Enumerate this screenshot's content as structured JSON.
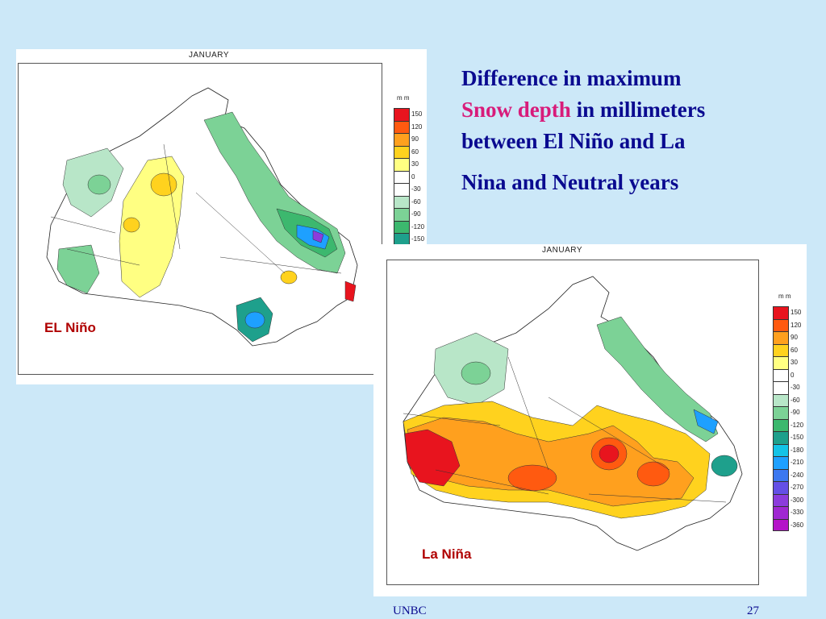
{
  "slide": {
    "title_line1": "Difference in maximum",
    "title_highlight": "Snow depth",
    "title_line2_rest": " in millimeters",
    "title_line3": "between El Niño and La",
    "title_line4": "Nina and Neutral years"
  },
  "footer": {
    "left": "UNBC",
    "page_number": "27"
  },
  "maps": [
    {
      "title": "JANUARY",
      "caption": "EL Niño"
    },
    {
      "title": "JANUARY",
      "caption": "La Niña"
    }
  ],
  "legend": {
    "unit": "m m",
    "levels": [
      {
        "label": "150",
        "color": "#e8141e"
      },
      {
        "label": "120",
        "color": "#ff5a10"
      },
      {
        "label": "90",
        "color": "#ffa01e"
      },
      {
        "label": "60",
        "color": "#ffd21e"
      },
      {
        "label": "30",
        "color": "#ffff82"
      },
      {
        "label": "0",
        "color": "#ffffff"
      },
      {
        "label": "-30",
        "color": "#ffffff"
      },
      {
        "label": "-60",
        "color": "#b8e6c8"
      },
      {
        "label": "-90",
        "color": "#7cd296"
      },
      {
        "label": "-120",
        "color": "#3cb86e"
      },
      {
        "label": "-150",
        "color": "#1ea08c"
      },
      {
        "label": "-180",
        "color": "#14c3e6"
      },
      {
        "label": "-210",
        "color": "#1ea0ff"
      },
      {
        "label": "-240",
        "color": "#3c78f0"
      },
      {
        "label": "-270",
        "color": "#6450e6"
      },
      {
        "label": "-300",
        "color": "#8c3cdc"
      },
      {
        "label": "-330",
        "color": "#a028d2"
      },
      {
        "label": "-360",
        "color": "#b414c8"
      }
    ]
  }
}
